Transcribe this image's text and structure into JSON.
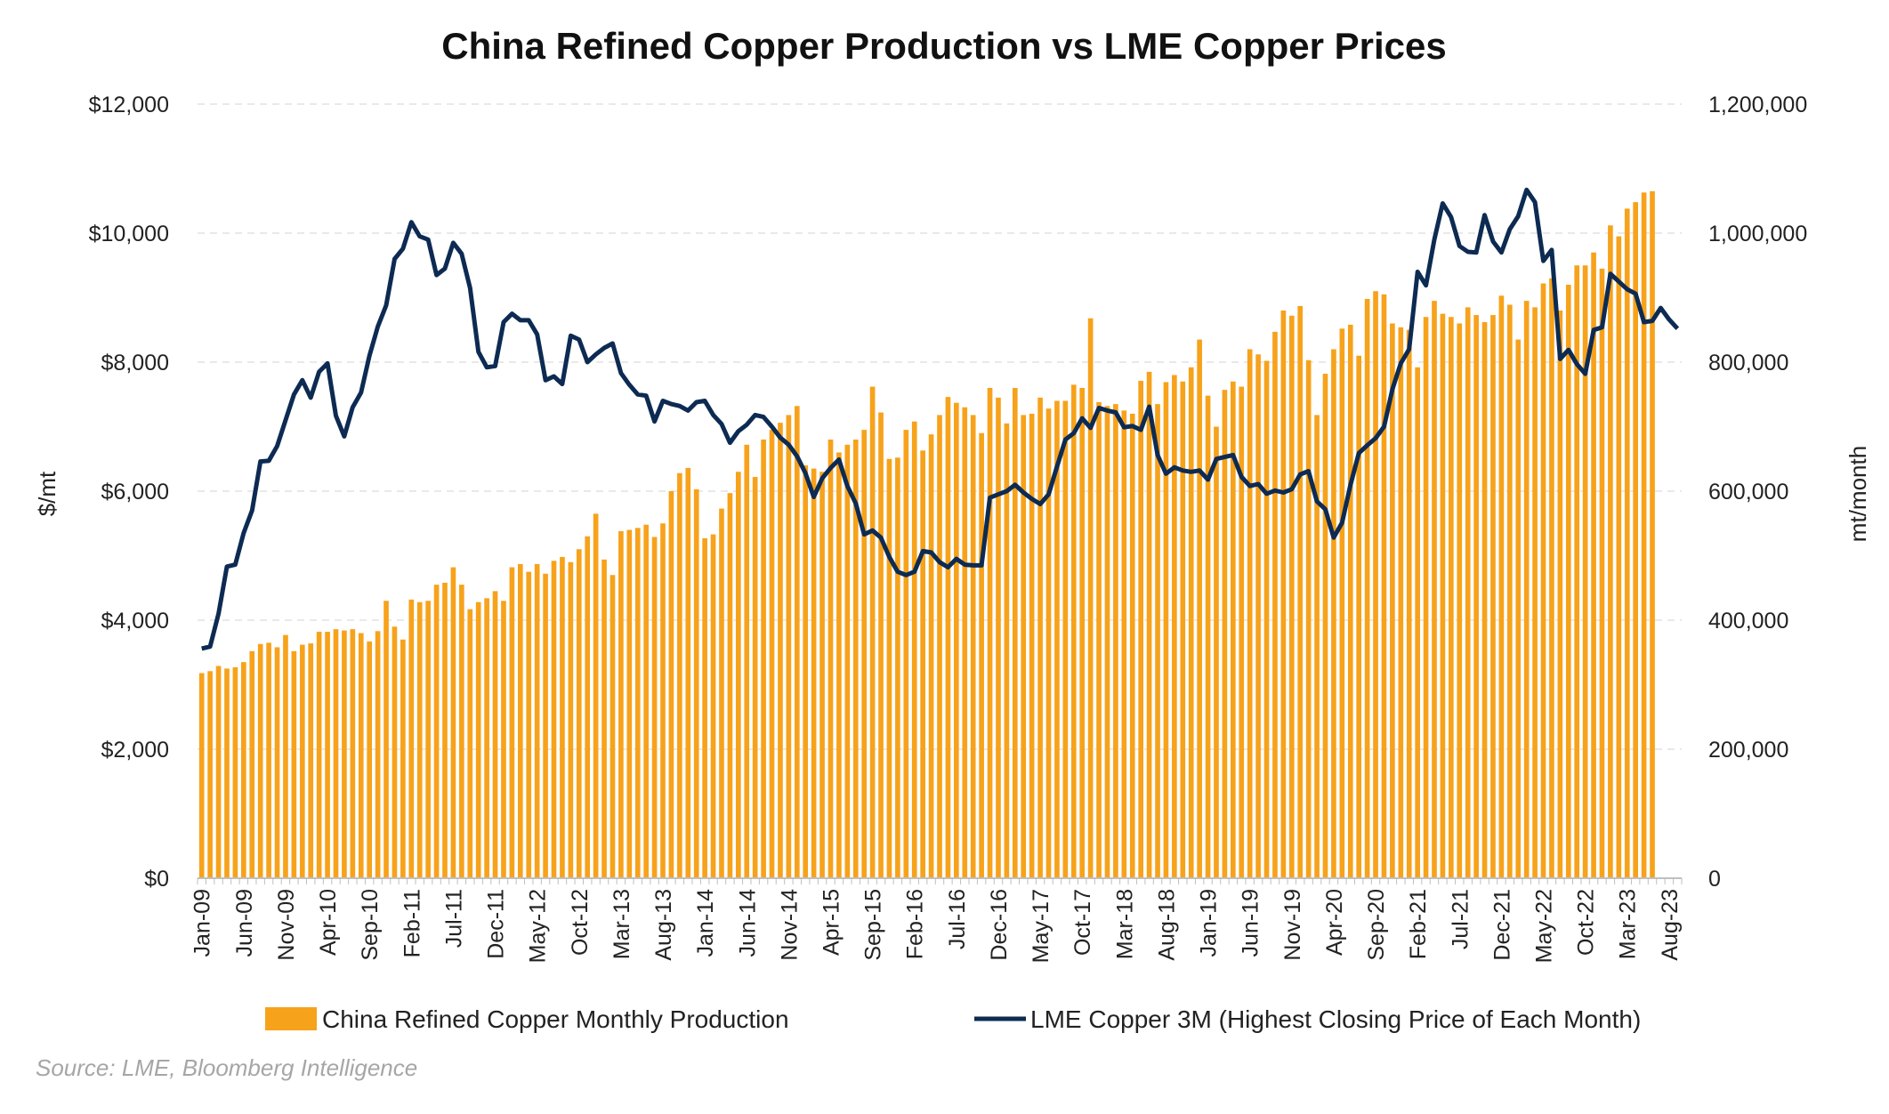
{
  "chart_data": {
    "type": "bar+line",
    "title": "China Refined Copper Production vs LME Copper Prices",
    "ylabel_left": "$/mt",
    "ylabel_right": "mt/month",
    "ylim_left": [
      0,
      12000
    ],
    "ylim_right": [
      0,
      1200000
    ],
    "yticks_left": [
      "$0",
      "$2,000",
      "$4,000",
      "$6,000",
      "$8,000",
      "$10,000",
      "$12,000"
    ],
    "yticks_right": [
      "0",
      "200,000",
      "400,000",
      "600,000",
      "800,000",
      "1,000,000",
      "1,200,000"
    ],
    "x_tick_labels": [
      "Jan-09",
      "Jun-09",
      "Nov-09",
      "Apr-10",
      "Sep-10",
      "Feb-11",
      "Jul-11",
      "Dec-11",
      "May-12",
      "Oct-12",
      "Mar-13",
      "Aug-13",
      "Jan-14",
      "Jun-14",
      "Nov-14",
      "Apr-15",
      "Sep-15",
      "Feb-16",
      "Jul-16",
      "Dec-16",
      "May-17",
      "Oct-17",
      "Mar-18",
      "Aug-18",
      "Jan-19",
      "Jun-19",
      "Nov-19",
      "Apr-20",
      "Sep-20",
      "Feb-21",
      "Jul-21",
      "Dec-21",
      "May-22",
      "Oct-22",
      "Mar-23",
      "Aug-23"
    ],
    "x_start": "Jan-09",
    "x_end": "Sep-23",
    "grid": true,
    "legend_position": "bottom",
    "series": [
      {
        "name": "China Refined Copper Monthly Production",
        "type": "bar",
        "axis": "right",
        "color": "#F7A21B",
        "values": [
          318000,
          321000,
          329000,
          325000,
          327000,
          335000,
          352000,
          363000,
          365000,
          358000,
          377000,
          352000,
          362000,
          364000,
          382000,
          382000,
          386000,
          384000,
          386000,
          380000,
          367000,
          383000,
          430000,
          390000,
          370000,
          432000,
          428000,
          430000,
          455000,
          458000,
          482000,
          455000,
          417000,
          428000,
          434000,
          445000,
          430000,
          482000,
          487000,
          475000,
          487000,
          472000,
          492000,
          498000,
          490000,
          510000,
          530000,
          565000,
          494000,
          470000,
          538000,
          540000,
          543000,
          548000,
          529000,
          550000,
          600000,
          628000,
          636000,
          603000,
          527000,
          533000,
          573000,
          597000,
          630000,
          672000,
          622000,
          680000,
          695000,
          706000,
          718000,
          732000,
          640000,
          635000,
          630000,
          680000,
          660000,
          672000,
          680000,
          695000,
          762000,
          722000,
          650000,
          652000,
          695000,
          708000,
          663000,
          688000,
          718000,
          746000,
          737000,
          730000,
          718000,
          690000,
          760000,
          745000,
          705000,
          760000,
          718000,
          720000,
          745000,
          728000,
          740000,
          740000,
          765000,
          760000,
          868000,
          738000,
          732000,
          735000,
          725000,
          720000,
          771000,
          785000,
          735000,
          769000,
          780000,
          770000,
          792000,
          835000,
          748000,
          700000,
          757000,
          770000,
          762000,
          820000,
          812000,
          802000,
          847000,
          880000,
          872000,
          887000,
          803000,
          718000,
          782000,
          820000,
          852000,
          858000,
          810000,
          898000,
          910000,
          905000,
          860000,
          854000,
          850000,
          792000,
          870000,
          895000,
          875000,
          870000,
          860000,
          885000,
          873000,
          862000,
          873000,
          903000,
          889000,
          835000,
          895000,
          885000,
          922000,
          930000,
          880000,
          920000,
          950000,
          950000,
          970000,
          945000,
          1012000,
          995000,
          1038000,
          1048000,
          1063000,
          1065000
        ],
        "label_range": "Jan-09 to Aug-23"
      },
      {
        "name": "LME Copper 3M (Highest Closing Price of Each Month)",
        "type": "line",
        "axis": "left",
        "color": "#0D2B52",
        "values": [
          3560,
          3590,
          4100,
          4830,
          4860,
          5350,
          5700,
          6460,
          6470,
          6700,
          7100,
          7500,
          7720,
          7450,
          7850,
          7980,
          7170,
          6850,
          7300,
          7530,
          8100,
          8550,
          8880,
          9600,
          9760,
          10170,
          9950,
          9900,
          9350,
          9450,
          9850,
          9680,
          9150,
          8160,
          7920,
          7940,
          8620,
          8750,
          8650,
          8650,
          8430,
          7720,
          7780,
          7660,
          8410,
          8350,
          8000,
          8120,
          8220,
          8290,
          7830,
          7650,
          7500,
          7480,
          7080,
          7400,
          7350,
          7320,
          7250,
          7380,
          7400,
          7180,
          7040,
          6750,
          6930,
          7030,
          7180,
          7150,
          7000,
          6830,
          6720,
          6540,
          6280,
          5910,
          6200,
          6360,
          6490,
          6080,
          5810,
          5330,
          5390,
          5280,
          4980,
          4750,
          4700,
          4750,
          5070,
          5050,
          4900,
          4820,
          4950,
          4860,
          4850,
          4850,
          5900,
          5950,
          6000,
          6100,
          5980,
          5880,
          5800,
          5950,
          6380,
          6800,
          6900,
          7130,
          6980,
          7290,
          7250,
          7220,
          6990,
          7010,
          6950,
          7310,
          6560,
          6270,
          6370,
          6320,
          6300,
          6320,
          6180,
          6500,
          6530,
          6560,
          6220,
          6080,
          6110,
          5960,
          6010,
          5980,
          6030,
          6260,
          6310,
          5840,
          5720,
          5280,
          5510,
          6100,
          6590,
          6710,
          6820,
          7000,
          7580,
          7980,
          8200,
          9400,
          9190,
          9900,
          10460,
          10250,
          9800,
          9710,
          9700,
          10280,
          9870,
          9700,
          10060,
          10260,
          10670,
          10480,
          9570,
          9740,
          8050,
          8190,
          7970,
          7820,
          8500,
          8540,
          9370,
          9250,
          9130,
          9060,
          8620,
          8640,
          8840,
          8660,
          8520
        ]
      }
    ]
  },
  "source": "Source: LME, Bloomberg Intelligence"
}
